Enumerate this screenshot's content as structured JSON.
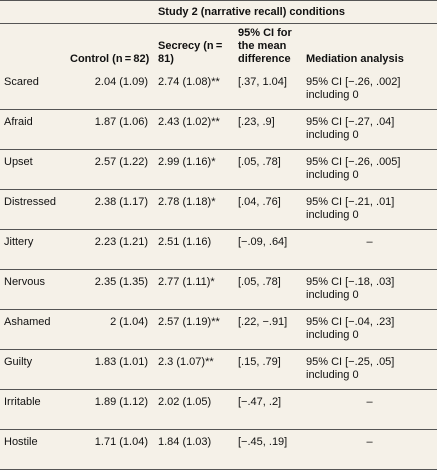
{
  "table": {
    "caption": "Study 2 (narrative recall) conditions",
    "columns": [
      "Control (n = 82)",
      "Secrecy (n = 81)",
      "95% CI for the mean difference",
      "Mediation analysis"
    ],
    "rows": [
      [
        "Scared",
        "2.04 (1.09)",
        "2.74 (1.08)**",
        "[.37, 1.04]",
        [
          "95% CI [−.26, .002]",
          "including 0"
        ]
      ],
      [
        "Afraid",
        "1.87 (1.06)",
        "2.43 (1.02)**",
        "[.23, .9]",
        [
          "95% CI [−.27, .04]",
          "including 0"
        ]
      ],
      [
        "Upset",
        "2.57 (1.22)",
        "2.99 (1.16)*",
        "[.05, .78]",
        [
          "95% CI [−.26, .005]",
          "including 0"
        ]
      ],
      [
        "Distressed",
        "2.38 (1.17)",
        "2.78 (1.18)*",
        "[.04, .76]",
        [
          "95% CI [−.21, .01]",
          "including 0"
        ]
      ],
      [
        "Jittery",
        "2.23 (1.21)",
        "2.51 (1.16)",
        "[−.09, .64]",
        "–"
      ],
      [
        "Nervous",
        "2.35 (1.35)",
        "2.77 (1.11)*",
        "[.05, .78]",
        [
          "95% CI [−.18, .03]",
          "including 0"
        ]
      ],
      [
        "Ashamed",
        "2 (1.04)",
        "2.57 (1.19)**",
        "[.22, −.91]",
        [
          "95% CI [−.04, .23]",
          "including 0"
        ]
      ],
      [
        "Guilty",
        "1.83 (1.01)",
        "2.3 (1.07)**",
        "[.15, .79]",
        [
          "95% CI [−.25, .05]",
          "including 0"
        ]
      ],
      [
        "Irritable",
        "1.89 (1.12)",
        "2.02 (1.05)",
        "[−.47, .2]",
        "–"
      ],
      [
        "Hostile",
        "1.71 (1.04)",
        "1.84 (1.03)",
        "[−.45, .19]",
        "–"
      ]
    ]
  }
}
